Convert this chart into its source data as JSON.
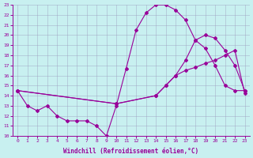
{
  "xlabel": "Windchill (Refroidissement éolien,°C)",
  "bg_color": "#c8f0f0",
  "line_color": "#990099",
  "xlim": [
    -0.5,
    23.5
  ],
  "ylim": [
    10,
    23
  ],
  "xticks": [
    0,
    1,
    2,
    3,
    4,
    5,
    6,
    7,
    8,
    9,
    10,
    11,
    12,
    13,
    14,
    15,
    16,
    17,
    18,
    19,
    20,
    21,
    22,
    23
  ],
  "yticks": [
    10,
    11,
    12,
    13,
    14,
    15,
    16,
    17,
    18,
    19,
    20,
    21,
    22,
    23
  ],
  "line1_x": [
    0,
    1,
    2,
    3,
    4,
    5,
    6,
    7,
    8,
    9,
    10,
    11,
    12,
    13,
    14,
    15,
    16,
    17,
    18,
    19,
    20,
    21,
    22,
    23
  ],
  "line1_y": [
    14.5,
    13.0,
    12.5,
    13.0,
    12.0,
    11.5,
    11.5,
    11.5,
    11.0,
    10.0,
    13.0,
    16.7,
    20.5,
    22.2,
    23.0,
    23.0,
    22.5,
    21.5,
    19.5,
    18.7,
    17.0,
    15.0,
    14.5,
    14.5
  ],
  "line2_x": [
    0,
    10,
    14,
    15,
    16,
    17,
    18,
    19,
    20,
    21,
    22,
    23
  ],
  "line2_y": [
    14.5,
    13.2,
    14.0,
    15.0,
    16.0,
    17.5,
    19.5,
    20.0,
    19.7,
    18.5,
    17.0,
    14.5
  ],
  "line3_x": [
    0,
    10,
    14,
    15,
    16,
    17,
    18,
    19,
    20,
    21,
    22,
    23
  ],
  "line3_y": [
    14.5,
    13.2,
    14.0,
    15.0,
    16.0,
    16.5,
    16.8,
    17.2,
    17.5,
    18.0,
    18.5,
    14.2
  ]
}
